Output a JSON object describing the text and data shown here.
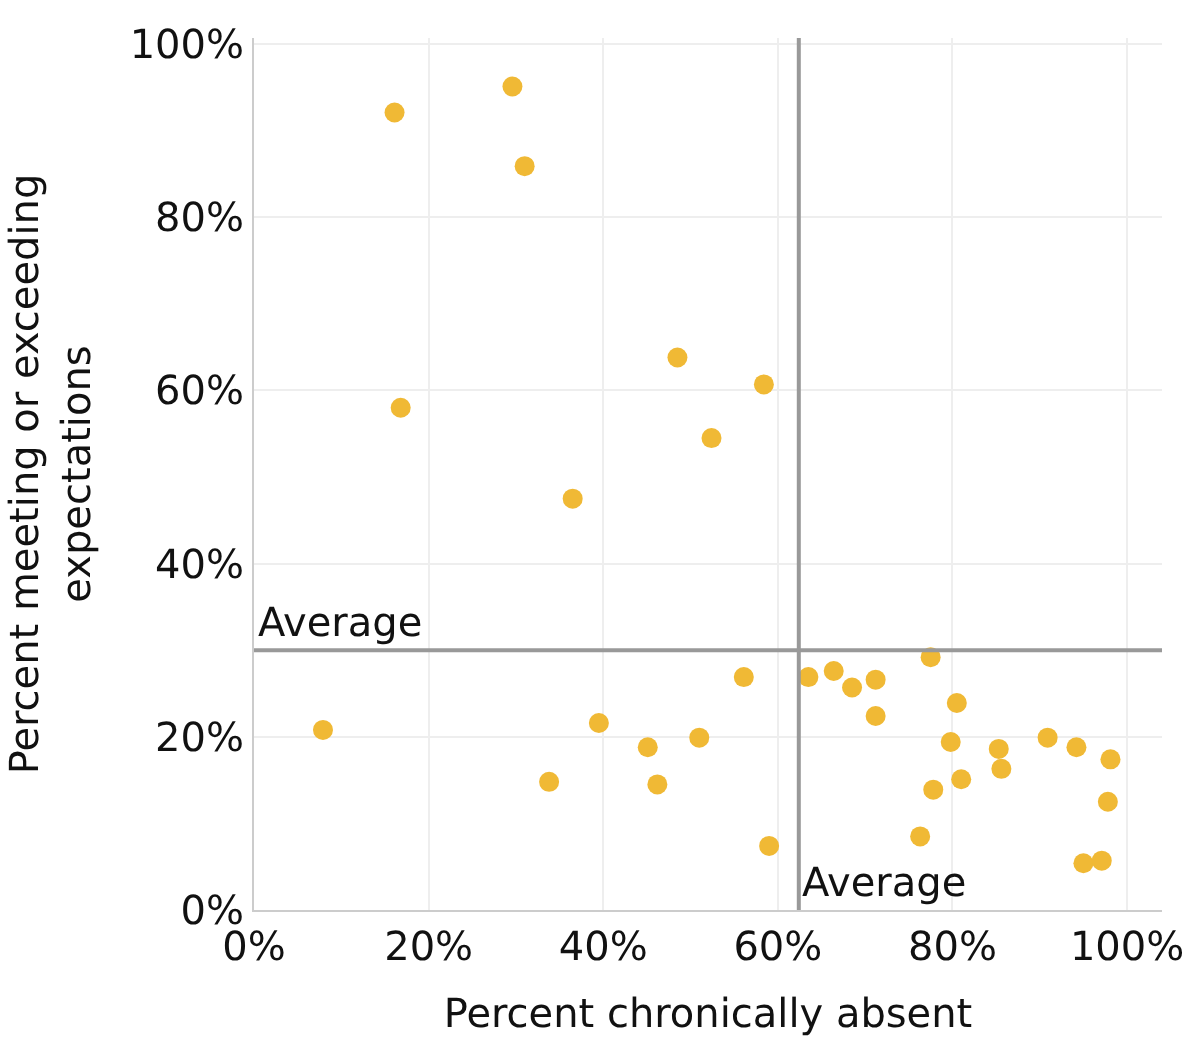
{
  "chart_data": {
    "type": "scatter",
    "xlabel": "Percent chronically absent",
    "ylabel": "Percent meeting or exceeding\nexpectations",
    "x": [
      16.1,
      29.6,
      31.0,
      48.5,
      58.4,
      52.4,
      16.8,
      36.5,
      7.9,
      33.8,
      39.5,
      45.1,
      46.2,
      51.0,
      56.1,
      59.0,
      63.5,
      66.4,
      68.5,
      71.2,
      71.2,
      77.5,
      80.5,
      79.8,
      76.3,
      77.8,
      81.0,
      85.3,
      85.6,
      90.9,
      94.2,
      98.1,
      97.8,
      95.0,
      97.1
    ],
    "series": [
      {
        "color": "#f0b935",
        "values": [
          92.1,
          95.1,
          85.9,
          63.8,
          60.7,
          54.5,
          58.0,
          47.5,
          20.8,
          14.8,
          21.6,
          18.8,
          14.5,
          19.9,
          26.9,
          7.4,
          26.9,
          27.6,
          25.7,
          26.6,
          22.4,
          29.2,
          23.9,
          19.4,
          8.5,
          13.9,
          15.1,
          18.6,
          16.3,
          19.9,
          18.8,
          17.4,
          12.5,
          5.4,
          5.7
        ]
      }
    ],
    "xlim": [
      0,
      104
    ],
    "ylim": [
      0,
      100.7
    ],
    "xticks": [
      {
        "value": 0,
        "label": "0%"
      },
      {
        "value": 20,
        "label": "20%"
      },
      {
        "value": 40,
        "label": "40%"
      },
      {
        "value": 60,
        "label": "60%"
      },
      {
        "value": 80,
        "label": "80%"
      },
      {
        "value": 100,
        "label": "100%"
      }
    ],
    "yticks": [
      {
        "value": 0,
        "label": "0%"
      },
      {
        "value": 20,
        "label": "20%"
      },
      {
        "value": 40,
        "label": "40%"
      },
      {
        "value": 60,
        "label": "60%"
      },
      {
        "value": 80,
        "label": "80%"
      },
      {
        "value": 100,
        "label": "100%"
      }
    ],
    "ref_lines": [
      {
        "axis": "y",
        "value": 30,
        "label": "Average",
        "color": "#999999"
      },
      {
        "axis": "x",
        "value": 62.4,
        "label": "Average",
        "color": "#999999"
      }
    ],
    "grid": true,
    "marker": "circle"
  }
}
